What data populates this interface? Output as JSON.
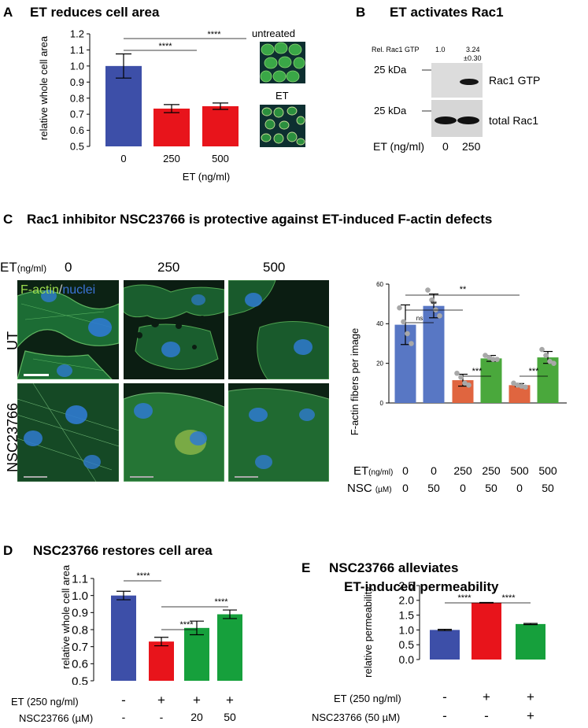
{
  "panels": {
    "A": {
      "letter": "A",
      "title": "ET reduces cell area",
      "ylabel": "relative whole cell area",
      "xlabel": "ET (ng/ml)",
      "thumb_labels": [
        "untreated",
        "ET"
      ],
      "sig": [
        "****",
        "****"
      ]
    },
    "B": {
      "letter": "B",
      "title": "ET activates Rac1",
      "rel_label": "Rel. Rac1 GTP",
      "rel_values": [
        "1.0",
        "3.24",
        "±0.30"
      ],
      "kda": [
        "25 kDa",
        "25 kDa"
      ],
      "band_labels": [
        "Rac1 GTP",
        "total Rac1"
      ],
      "et_label": "ET (ng/ml)",
      "et_values": [
        "0",
        "250"
      ]
    },
    "C": {
      "letter": "C",
      "title": "Rac1 inhibitor NSC23766 is protective against ET-induced F-actin defects",
      "et_prefix": "ET",
      "et_unit": "(ng/ml)",
      "col_labels": [
        "0",
        "250",
        "500"
      ],
      "row_labels": [
        "UT",
        "NSC23766"
      ],
      "stain_green": "F-actin",
      "stain_sep": "/",
      "stain_blue": "nuclei",
      "ylabel": "F-actin fibers per image",
      "row1_label": "ET",
      "row1_unit": "(ng/ml)",
      "row1_values": [
        "0",
        "0",
        "250",
        "250",
        "500",
        "500"
      ],
      "row2_label": "NSC",
      "row2_unit": "(µM)",
      "row2_values": [
        "0",
        "50",
        "0",
        "50",
        "0",
        "50"
      ],
      "sig": [
        "**",
        "**",
        "ns",
        "***",
        "***"
      ]
    },
    "D": {
      "letter": "D",
      "title": "NSC23766 restores cell area",
      "ylabel": "relative whole cell area",
      "row1_label": "ET (250 ng/ml)",
      "row1_values": [
        "-",
        "+",
        "+",
        "+"
      ],
      "row2_label": "NSC23766 (µM)",
      "row2_values": [
        "-",
        "-",
        "20",
        "50"
      ],
      "sig": [
        "****",
        "****",
        "****"
      ]
    },
    "E": {
      "letter": "E",
      "title_line1": "NSC23766 alleviates",
      "title_line2": "ET-induced permeability",
      "ylabel": "relative permeability",
      "row1_label": "ET (250 ng/ml)",
      "row1_values": [
        "-",
        "+",
        "+"
      ],
      "row2_label": "NSC23766 (50 µM)",
      "row2_values": [
        "-",
        "-",
        "+"
      ],
      "sig": [
        "****",
        "****"
      ]
    }
  },
  "colors": {
    "blue": "#3d4fa8",
    "red": "#e8141b",
    "green": "#16a03c",
    "c_blue": "#5877c4",
    "c_red": "#e0653f",
    "c_green": "#4aa83c"
  },
  "chart_data": [
    {
      "id": "A",
      "type": "bar",
      "categories": [
        "0",
        "250",
        "500"
      ],
      "values": [
        1.0,
        0.735,
        0.75
      ],
      "errors": [
        0.075,
        0.025,
        0.02
      ],
      "ylim": [
        0.5,
        1.2
      ],
      "yticks": [
        "0.5",
        "0.6",
        "0.7",
        "0.8",
        "0.9",
        "1.0",
        "1.1",
        "1.2"
      ],
      "colors": [
        "#3d4fa8",
        "#e8141b",
        "#e8141b"
      ]
    },
    {
      "id": "C",
      "type": "bar",
      "categories": [
        "1",
        "2",
        "3",
        "4",
        "5",
        "6"
      ],
      "values": [
        39.5,
        49,
        11.5,
        22.5,
        9,
        23
      ],
      "errors": [
        10,
        6,
        3,
        1.5,
        0.8,
        3
      ],
      "points": [
        [
          48,
          41,
          35,
          30
        ],
        [
          57,
          52,
          47,
          44
        ],
        [
          15,
          13,
          10,
          9
        ],
        [
          24,
          23,
          22,
          22
        ],
        [
          10,
          9,
          8.5,
          8
        ],
        [
          27,
          24,
          21,
          20
        ]
      ],
      "ylim": [
        0,
        60
      ],
      "yticks": [
        "0",
        "20",
        "40",
        "60"
      ],
      "colors": [
        "#5877c4",
        "#5877c4",
        "#e0653f",
        "#4aa83c",
        "#e0653f",
        "#4aa83c"
      ]
    },
    {
      "id": "D",
      "type": "bar",
      "categories": [
        "1",
        "2",
        "3",
        "4"
      ],
      "values": [
        1.0,
        0.73,
        0.81,
        0.89
      ],
      "errors": [
        0.025,
        0.025,
        0.04,
        0.025
      ],
      "ylim": [
        0.5,
        1.1
      ],
      "yticks": [
        "0.5",
        "0.6",
        "0.7",
        "0.8",
        "0.9",
        "1.0",
        "1.1"
      ],
      "colors": [
        "#3d4fa8",
        "#e8141b",
        "#16a03c",
        "#16a03c"
      ]
    },
    {
      "id": "E",
      "type": "bar",
      "categories": [
        "1",
        "2",
        "3"
      ],
      "values": [
        1.0,
        1.92,
        1.2
      ],
      "errors": [
        0.02,
        0.01,
        0.02
      ],
      "ylim": [
        0,
        2.5
      ],
      "yticks": [
        "0.0",
        "0.5",
        "1.0",
        "1.5",
        "2.0",
        "2.5"
      ],
      "colors": [
        "#3d4fa8",
        "#e8141b",
        "#16a03c"
      ]
    }
  ]
}
